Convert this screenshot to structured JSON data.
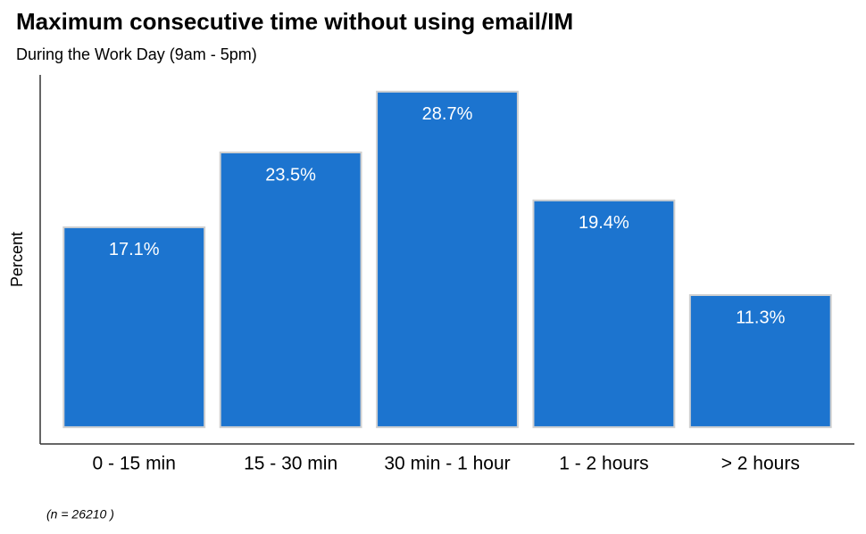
{
  "chart_data": {
    "type": "bar",
    "title": "Maximum consecutive time without using email/IM",
    "subtitle": "During the Work Day (9am - 5pm)",
    "y_label": "Percent",
    "caption": "(n = 26210 )",
    "categories": [
      "0 - 15 min",
      "15 - 30 min",
      "30 min - 1 hour",
      "1 - 2 hours",
      "> 2 hours"
    ],
    "values": [
      17.1,
      23.5,
      28.7,
      19.4,
      11.3
    ],
    "value_labels": [
      "17.1%",
      "23.5%",
      "28.7%",
      "19.4%",
      "11.3%"
    ],
    "color": "#1c74cf",
    "ylim": [
      -1.435,
      30.135
    ],
    "grid": false
  }
}
